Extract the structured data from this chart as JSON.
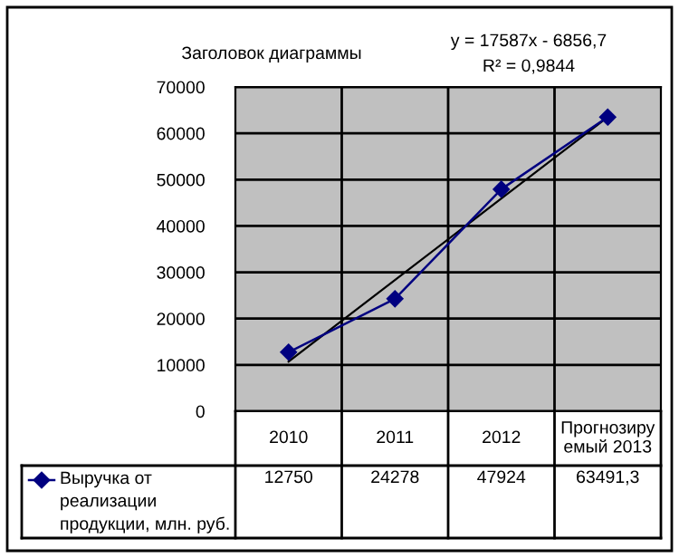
{
  "chart_data": {
    "type": "line",
    "title": "Заголовок диаграммы",
    "categories": [
      "2010",
      "2011",
      "2012",
      "Прогнозиру\nемый 2013"
    ],
    "series": [
      {
        "name": "Выручка от\nреализации\nпродукции, млн. руб.",
        "color": "#000080",
        "values": [
          12750,
          24278,
          47924,
          63491.3
        ],
        "value_labels": [
          "12750",
          "24278",
          "47924",
          "63491,3"
        ],
        "marker": "diamond"
      },
      {
        "type": "line",
        "color": "#000000",
        "values": [
          10730,
          28317,
          45904,
          63491
        ],
        "marker": "none"
      }
    ],
    "annotations": [
      "y = 17587x - 6856,7",
      "R² = 0,9844"
    ],
    "ylim": [
      0,
      70000
    ],
    "yticks": [
      0,
      10000,
      20000,
      30000,
      40000,
      50000,
      60000,
      70000
    ],
    "grid": true,
    "legend": "bottom",
    "line_style": "solid"
  }
}
